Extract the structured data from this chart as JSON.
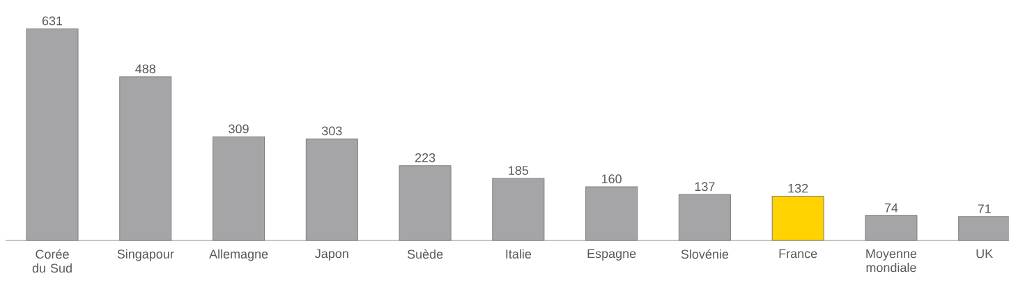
{
  "chart_data": {
    "type": "bar",
    "categories": [
      "Corée du Sud",
      "Singapour",
      "Allemagne",
      "Japon",
      "Suède",
      "Italie",
      "Espagne",
      "Slovénie",
      "France",
      "Moyenne mondiale",
      "UK"
    ],
    "values": [
      631,
      488,
      309,
      303,
      223,
      185,
      160,
      137,
      132,
      74,
      71
    ],
    "colors": [
      "#a5a5a7",
      "#a5a5a7",
      "#a5a5a7",
      "#a5a5a7",
      "#a5a5a7",
      "#a5a5a7",
      "#a5a5a7",
      "#a5a5a7",
      "#ffd200",
      "#a5a5a7",
      "#a5a5a7"
    ],
    "data_labels": true
  }
}
